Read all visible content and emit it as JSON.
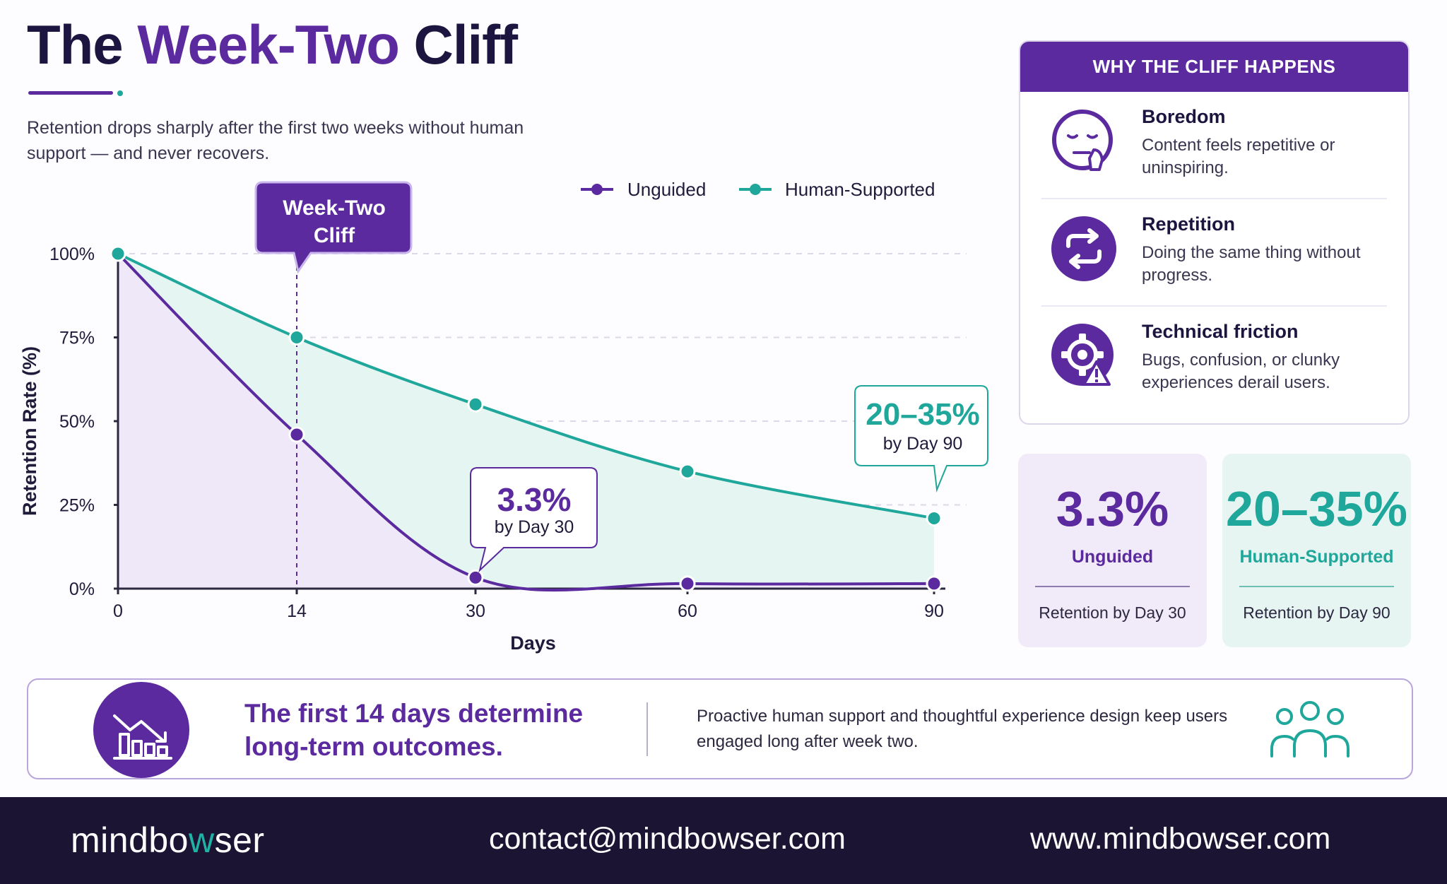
{
  "header": {
    "title_prefix": "The ",
    "title_highlight": "Week-Two",
    "title_suffix": " Cliff",
    "subtitle": "Retention drops sharply after the first two weeks without human support — and never recovers."
  },
  "colors": {
    "unguided": "#5b2a9e",
    "human_supported": "#1ea79a",
    "dark": "#1b1533"
  },
  "chart_data": {
    "type": "line",
    "x": [
      0,
      14,
      30,
      60,
      90
    ],
    "x_ticks": [
      "0",
      "14",
      "30",
      "60",
      "90"
    ],
    "xlabel": "Days",
    "ylabel": "Retention Rate (%)",
    "y_ticks": [
      "0%",
      "25%",
      "50%",
      "75%",
      "100%"
    ],
    "ylim": [
      0,
      100
    ],
    "grid": "horizontal dashed",
    "legend_position": "top-right",
    "series": [
      {
        "name": "Unguided",
        "values": [
          100,
          46,
          3.3,
          1.5,
          1.5
        ],
        "color": "#5b2a9e"
      },
      {
        "name": "Human-Supported",
        "values": [
          100,
          75,
          55,
          35,
          21
        ],
        "color": "#1ea79a"
      }
    ],
    "annotations": [
      {
        "id": "cliff",
        "lines": [
          "Week-Two",
          "Cliff"
        ],
        "x": 14
      },
      {
        "id": "day30",
        "value": "3.3%",
        "caption": "by Day 30",
        "x": 30,
        "series": "Unguided"
      },
      {
        "id": "day90",
        "value": "20–35%",
        "caption": "by Day 90",
        "x": 90,
        "series": "Human-Supported"
      }
    ]
  },
  "reasons_card": {
    "heading": "WHY THE CLIFF HAPPENS",
    "items": [
      {
        "title": "Boredom",
        "description": "Content feels repetitive or uninspiring.",
        "icon": "bored-face-icon"
      },
      {
        "title": "Repetition",
        "description": "Doing the same thing without progress.",
        "icon": "repeat-icon"
      },
      {
        "title": "Technical friction",
        "description": "Bugs, confusion, or clunky experiences derail users.",
        "icon": "gear-warning-icon"
      }
    ]
  },
  "stats": [
    {
      "value": "3.3%",
      "label": "Unguided",
      "caption": "Retention by Day 30"
    },
    {
      "value": "20–35%",
      "label": "Human-Supported",
      "caption": "Retention by Day 90"
    }
  ],
  "banner": {
    "headline": "The first 14 days determine long-term outcomes.",
    "text": "Proactive human support and thoughtful experience design keep users engaged long after week two.",
    "icon": "declining-bar-chart-icon",
    "right_icon": "people-group-icon"
  },
  "footer": {
    "logo_part1": "mindbo",
    "logo_w": "w",
    "logo_part2": "ser",
    "email": "contact@mindbowser.com",
    "website": "www.mindbowser.com"
  }
}
